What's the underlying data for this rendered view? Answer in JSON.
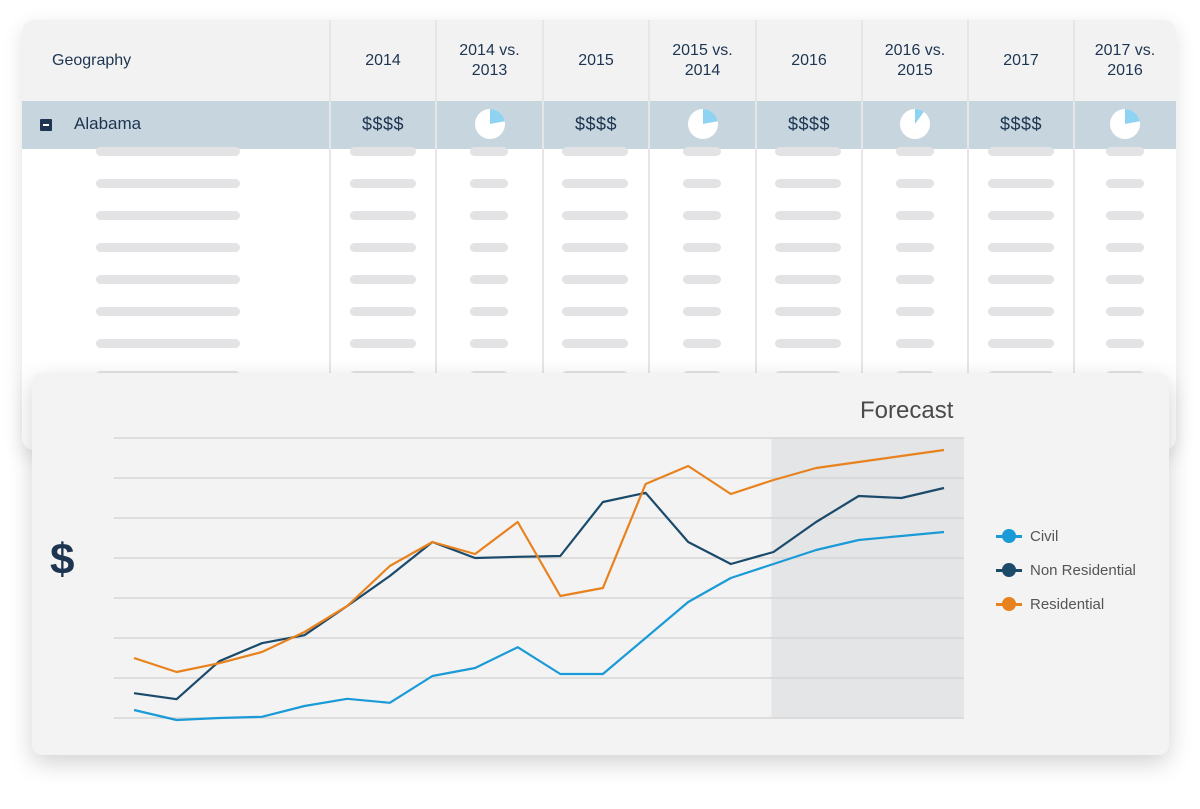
{
  "table": {
    "headers": [
      {
        "label": "Geography"
      },
      {
        "label": "2014"
      },
      {
        "label": "2014 vs.\n2013"
      },
      {
        "label": "2015"
      },
      {
        "label": "2015 vs.\n2014"
      },
      {
        "label": "2016"
      },
      {
        "label": "2016 vs.\n2015"
      },
      {
        "label": "2017"
      },
      {
        "label": "2017 vs.\n2016"
      }
    ],
    "expanded_row": {
      "name": "Alabama",
      "values": [
        "$$$$",
        "$$$$",
        "$$$$",
        "$$$$"
      ],
      "pie_fractions": [
        0.22,
        0.22,
        0.1,
        0.22
      ]
    }
  },
  "chart": {
    "ylabel": "$",
    "forecast_label": "Forecast",
    "colors": {
      "civil": "#1a9ad6",
      "non_residential": "#1b4a6b",
      "residential": "#e8821e",
      "forecast_band": "#e4e5e7",
      "grid": "#d6d6d6"
    }
  },
  "chart_data": {
    "type": "line",
    "title": "",
    "xlabel": "",
    "ylabel": "$",
    "x": [
      1,
      2,
      3,
      4,
      5,
      6,
      7,
      8,
      9,
      10,
      11,
      12,
      13,
      14,
      15,
      16,
      17,
      18,
      19,
      20
    ],
    "forecast_start": 16,
    "ylim": [
      0,
      7
    ],
    "grid": true,
    "legend_position": "right",
    "series": [
      {
        "name": "Civil",
        "color": "#1a9ad6",
        "values": [
          0.2,
          -0.05,
          0.0,
          0.03,
          0.3,
          0.48,
          0.38,
          1.05,
          1.25,
          1.77,
          1.1,
          1.1,
          2.0,
          2.9,
          3.5,
          3.85,
          4.2,
          4.45,
          4.55,
          4.65
        ]
      },
      {
        "name": "Non Residential",
        "color": "#1b4a6b",
        "values": [
          0.62,
          0.47,
          1.42,
          1.87,
          2.07,
          2.8,
          3.55,
          4.4,
          4.0,
          4.03,
          4.05,
          5.4,
          5.63,
          4.4,
          3.85,
          4.15,
          4.9,
          5.55,
          5.5,
          5.75
        ]
      },
      {
        "name": "Residential",
        "color": "#e8821e",
        "values": [
          1.5,
          1.15,
          1.37,
          1.65,
          2.15,
          2.8,
          3.8,
          4.4,
          4.1,
          4.9,
          3.05,
          3.25,
          5.85,
          6.3,
          5.6,
          5.95,
          6.25,
          6.4,
          6.55,
          6.7
        ]
      }
    ]
  }
}
